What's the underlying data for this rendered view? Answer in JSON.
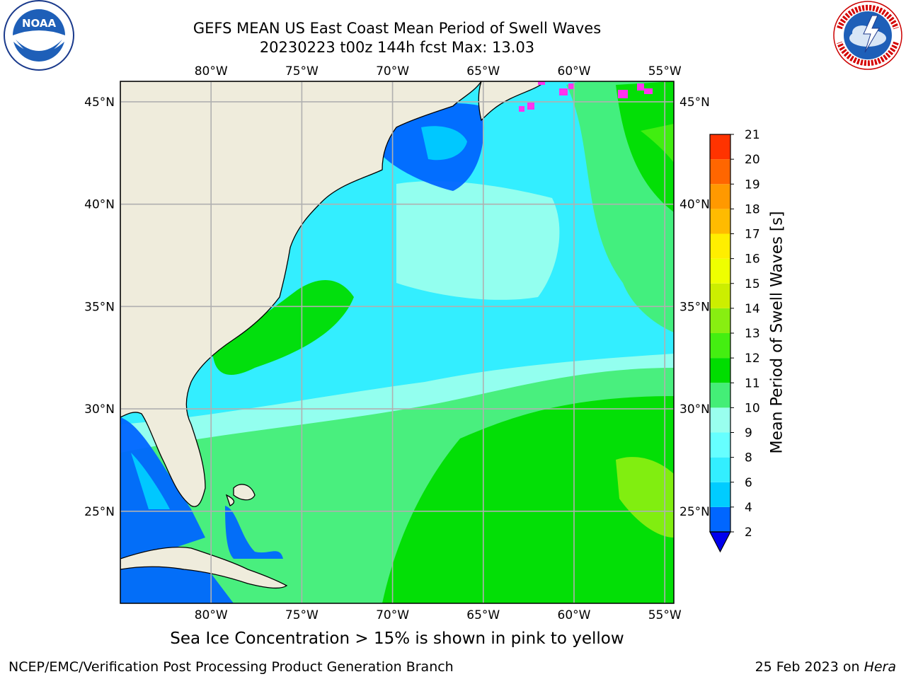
{
  "header": {
    "title_line1": "GEFS MEAN US East Coast Mean Period of Swell Waves",
    "title_line2": "20230223 t00z 144h fcst   Max: 13.03"
  },
  "logos": {
    "left": {
      "name": "noaa-logo",
      "text": "NOAA",
      "ring_text": "NATIONAL OCEANIC AND ATMOSPHERIC ADMINISTRATION · U.S. DEPARTMENT OF COMMERCE"
    },
    "right": {
      "name": "nws-logo",
      "ring_text": "NATIONAL WEATHER SERVICE"
    }
  },
  "map": {
    "top_lon_labels": [
      "80°W",
      "75°W",
      "70°W",
      "65°W",
      "60°W",
      "55°W"
    ],
    "bottom_lon_labels": [
      "80°W",
      "75°W",
      "70°W",
      "65°W",
      "60°W",
      "55°W"
    ],
    "lat_labels": [
      "45°N",
      "40°N",
      "35°N",
      "30°N",
      "25°N"
    ],
    "lon_values": [
      -80,
      -75,
      -70,
      -65,
      -60,
      -55
    ],
    "lat_values": [
      45,
      40,
      35,
      30,
      25
    ],
    "lon_range": [
      -85,
      -54.5
    ],
    "lat_range": [
      20.5,
      46
    ],
    "land_color": "#efecdc",
    "grid_color": "#b0b0b0"
  },
  "colorbar": {
    "label": "Mean Period of Swell Waves [s]",
    "ticks": [
      "2",
      "4",
      "6",
      "8",
      "9",
      "10",
      "11",
      "12",
      "13",
      "14",
      "15",
      "16",
      "17",
      "18",
      "19",
      "20",
      "21"
    ],
    "colors": [
      "#0066ff",
      "#00ccff",
      "#33eeff",
      "#66ffff",
      "#99ffee",
      "#44ee77",
      "#00dd00",
      "#44ee11",
      "#88ee11",
      "#ccee00",
      "#eeff00",
      "#ffee00",
      "#ffbb00",
      "#ff9900",
      "#ff6600",
      "#ff3300"
    ],
    "under_color": "#0000ee"
  },
  "caption": "Sea Ice Concentration > 15% is shown in pink to yellow",
  "footer": {
    "left": "NCEP/EMC/Verification Post Processing Product Generation Branch",
    "right_date": "25 Feb 2023 on ",
    "right_host": "Hera"
  }
}
